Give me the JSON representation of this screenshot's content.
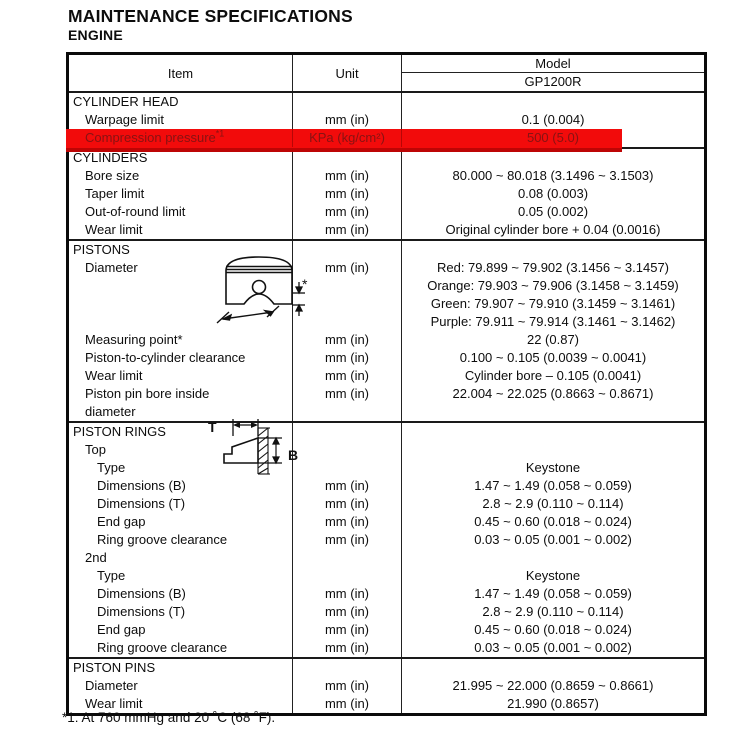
{
  "page": {
    "title": "MAINTENANCE SPECIFICATIONS",
    "subtitle": "ENGINE",
    "footnote": "*1: At 760 mmHg and 20 ˚C (68 ˚F)."
  },
  "table": {
    "headers": {
      "item": "Item",
      "unit": "Unit",
      "model": "Model",
      "model_value": "GP1200R"
    },
    "highlight": {
      "bar_color": "#f20b0b",
      "shadow_color": "#bd0505",
      "text_color": "#871313"
    },
    "rows": [
      {
        "indent": 0,
        "item": "CYLINDER HEAD",
        "unit": "",
        "value": ""
      },
      {
        "indent": 1,
        "item": "Warpage limit",
        "unit": "mm (in)",
        "value": "0.1 (0.004)"
      },
      {
        "indent": 1,
        "item": "Compression pressure",
        "item_sup": "*1",
        "unit": "KPa (kg/cm²)",
        "value": "500 (5.0)",
        "highlight": true
      },
      {
        "indent": 0,
        "item": "CYLINDERS",
        "unit": "",
        "value": ""
      },
      {
        "indent": 1,
        "item": "Bore size",
        "unit": "mm (in)",
        "value": "80.000 ~ 80.018 (3.1496 ~ 3.1503)"
      },
      {
        "indent": 1,
        "item": "Taper limit",
        "unit": "mm (in)",
        "value": "0.08 (0.003)"
      },
      {
        "indent": 1,
        "item": "Out-of-round limit",
        "unit": "mm (in)",
        "value": "0.05 (0.002)"
      },
      {
        "indent": 1,
        "item": "Wear limit",
        "unit": "mm (in)",
        "value": "Original cylinder bore + 0.04 (0.0016)"
      },
      {
        "indent": 0,
        "item": "PISTONS",
        "unit": "",
        "value": ""
      },
      {
        "indent": 1,
        "item": "Diameter",
        "unit": "mm (in)",
        "value_lines": [
          "Red: 79.899 ~ 79.902 (3.1456 ~ 3.1457)",
          "Orange: 79.903 ~ 79.906 (3.1458 ~ 3.1459)",
          "Green: 79.907 ~ 79.910 (3.1459 ~ 3.1461)",
          "Purple: 79.911 ~ 79.914 (3.1461 ~ 3.1462)"
        ]
      },
      {
        "indent": 1,
        "item": "Measuring point*",
        "unit": "mm (in)",
        "value": "22 (0.87)"
      },
      {
        "indent": 1,
        "item": "Piston-to-cylinder clearance",
        "unit": "mm (in)",
        "value": "0.100 ~ 0.105 (0.0039 ~ 0.0041)"
      },
      {
        "indent": 1,
        "item": "Wear limit",
        "unit": "mm (in)",
        "value": "Cylinder bore – 0.105 (0.0041)"
      },
      {
        "indent": 1,
        "item": "Piston pin bore inside",
        "item2": "diameter",
        "unit": "mm (in)",
        "value": "22.004 ~ 22.025 (0.8663 ~ 0.8671)"
      },
      {
        "indent": 0,
        "item": "PISTON RINGS",
        "unit": "",
        "value": ""
      },
      {
        "indent": 1,
        "item": "Top",
        "unit": "",
        "value": ""
      },
      {
        "indent": 2,
        "item": "Type",
        "unit": "",
        "value": "Keystone"
      },
      {
        "indent": 2,
        "item": "Dimensions (B)",
        "unit": "mm (in)",
        "value": "1.47 ~ 1.49 (0.058 ~ 0.059)"
      },
      {
        "indent": 2,
        "item": "Dimensions (T)",
        "unit": "mm (in)",
        "value": "2.8 ~ 2.9 (0.110 ~ 0.114)"
      },
      {
        "indent": 2,
        "item": "End gap",
        "unit": "mm (in)",
        "value": "0.45 ~ 0.60 (0.018 ~ 0.024)"
      },
      {
        "indent": 2,
        "item": "Ring groove clearance",
        "unit": "mm (in)",
        "value": "0.03 ~ 0.05 (0.001 ~ 0.002)"
      },
      {
        "indent": 1,
        "item": "2nd",
        "unit": "",
        "value": ""
      },
      {
        "indent": 2,
        "item": "Type",
        "unit": "",
        "value": "Keystone"
      },
      {
        "indent": 2,
        "item": "Dimensions (B)",
        "unit": "mm (in)",
        "value": "1.47 ~ 1.49 (0.058 ~ 0.059)"
      },
      {
        "indent": 2,
        "item": "Dimensions (T)",
        "unit": "mm (in)",
        "value": "2.8 ~ 2.9 (0.110 ~ 0.114)"
      },
      {
        "indent": 2,
        "item": "End gap",
        "unit": "mm (in)",
        "value": "0.45 ~ 0.60 (0.018 ~ 0.024)"
      },
      {
        "indent": 2,
        "item": "Ring groove clearance",
        "unit": "mm (in)",
        "value": "0.03 ~ 0.05 (0.001 ~ 0.002)"
      },
      {
        "indent": 0,
        "item": "PISTON PINS",
        "unit": "",
        "value": ""
      },
      {
        "indent": 1,
        "item": "Diameter",
        "unit": "mm (in)",
        "value": "21.995 ~ 22.000 (0.8659 ~ 0.8661)"
      },
      {
        "indent": 1,
        "item": "Wear limit",
        "unit": "mm (in)",
        "value": "21.990 (0.8657)"
      }
    ],
    "diagrams": {
      "piston_measuring_point_label": "*",
      "ring_dimension_t_label": "T",
      "ring_dimension_b_label": "B"
    }
  }
}
